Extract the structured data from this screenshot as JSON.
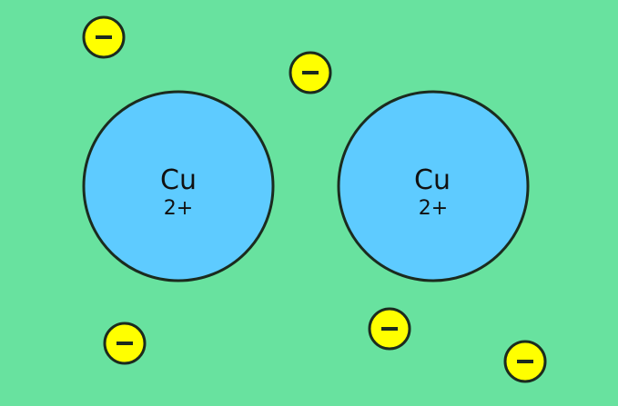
{
  "colors": {
    "background": "#68e29f",
    "ion_fill": "#5ecbff",
    "electron_fill": "#ffff00",
    "outline": "#1b2b1e"
  },
  "ions": [
    {
      "symbol": "Cu",
      "charge": "2+"
    },
    {
      "symbol": "Cu",
      "charge": "2+"
    }
  ],
  "electrons": [
    {
      "icon": "minus-sign-icon"
    },
    {
      "icon": "minus-sign-icon"
    },
    {
      "icon": "minus-sign-icon"
    },
    {
      "icon": "minus-sign-icon"
    },
    {
      "icon": "minus-sign-icon"
    }
  ]
}
